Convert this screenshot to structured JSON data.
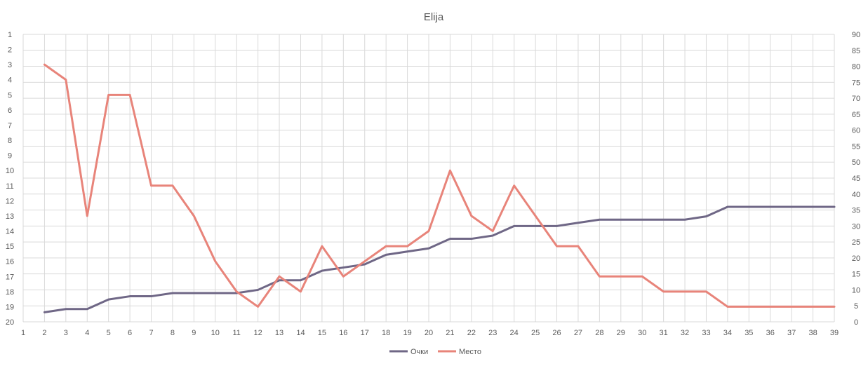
{
  "chart_data": {
    "type": "line",
    "title": "Elija",
    "x_ticks": [
      "1",
      "2",
      "3",
      "4",
      "5",
      "6",
      "7",
      "8",
      "9",
      "10",
      "11",
      "12",
      "13",
      "14",
      "15",
      "16",
      "17",
      "18",
      "19",
      "20",
      "21",
      "22",
      "23",
      "24",
      "25",
      "26",
      "27",
      "28",
      "29",
      "30",
      "31",
      "32",
      "33",
      "34",
      "35",
      "36",
      "37",
      "38",
      "39"
    ],
    "left_axis": {
      "ticks": [
        "1",
        "2",
        "3",
        "4",
        "5",
        "6",
        "7",
        "8",
        "9",
        "10",
        "11",
        "12",
        "13",
        "14",
        "15",
        "16",
        "17",
        "18",
        "19",
        "20"
      ],
      "range": [
        1,
        20
      ],
      "reversed": true,
      "series": "Место"
    },
    "right_axis": {
      "ticks": [
        "0",
        "5",
        "10",
        "15",
        "20",
        "25",
        "30",
        "35",
        "40",
        "45",
        "50",
        "55",
        "60",
        "65",
        "70",
        "75",
        "80",
        "85",
        "90"
      ],
      "range": [
        0,
        90
      ],
      "series": "Очки"
    },
    "grid": true,
    "legend_position": "bottom",
    "series": [
      {
        "name": "Очки",
        "color": "#6f6786",
        "axis": "right",
        "x": [
          2,
          3,
          4,
          5,
          6,
          7,
          8,
          9,
          10,
          11,
          12,
          13,
          14,
          15,
          16,
          17,
          18,
          19,
          20,
          21,
          22,
          23,
          24,
          25,
          26,
          27,
          28,
          29,
          30,
          31,
          32,
          33,
          34,
          35,
          36,
          37,
          38,
          39
        ],
        "values": [
          3,
          4,
          4,
          7,
          8,
          8,
          9,
          9,
          9,
          9,
          10,
          13,
          13,
          16,
          17,
          18,
          21,
          22,
          23,
          26,
          26,
          27,
          30,
          30,
          30,
          31,
          32,
          32,
          32,
          32,
          32,
          33,
          36,
          36,
          36,
          36,
          36,
          36
        ]
      },
      {
        "name": "Место",
        "color": "#e8847a",
        "axis": "left",
        "x": [
          2,
          3,
          4,
          5,
          6,
          7,
          8,
          9,
          10,
          11,
          12,
          13,
          14,
          15,
          16,
          17,
          18,
          19,
          20,
          21,
          22,
          23,
          24,
          25,
          26,
          27,
          28,
          29,
          30,
          31,
          32,
          33,
          34,
          35,
          36,
          37,
          38,
          39
        ],
        "values": [
          3,
          4,
          13,
          5,
          5,
          11,
          11,
          13,
          16,
          18,
          19,
          17,
          18,
          15,
          17,
          16,
          15,
          15,
          14,
          10,
          13,
          14,
          11,
          13,
          15,
          15,
          17,
          17,
          17,
          18,
          18,
          18,
          19,
          19,
          19,
          19,
          19,
          19
        ]
      }
    ]
  }
}
